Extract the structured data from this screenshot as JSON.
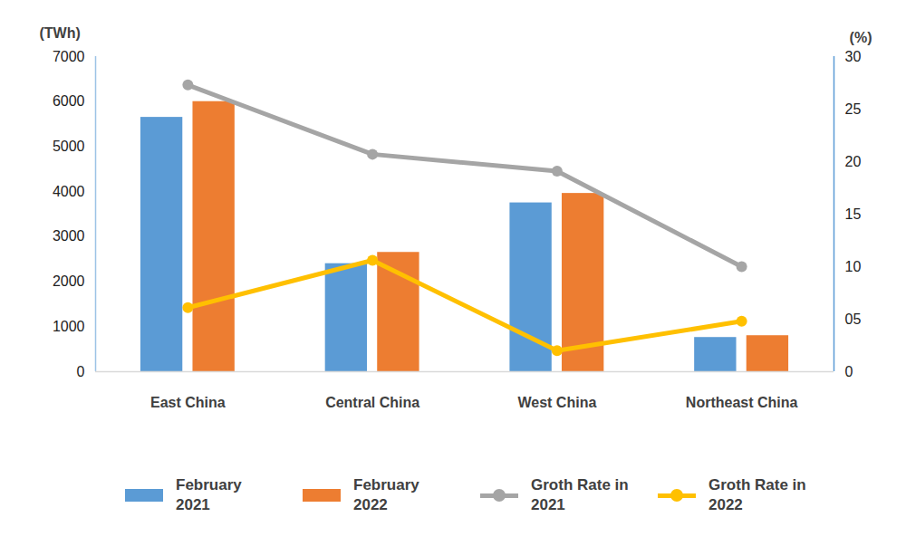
{
  "chart_data": {
    "type": "bar",
    "categories": [
      "East China",
      "Central China",
      "West China",
      "Northeast China"
    ],
    "y_label": "(TWh)",
    "y2_label": "(%)",
    "ylim": [
      0,
      7000
    ],
    "yticks": [
      0,
      1000,
      2000,
      3000,
      4000,
      5000,
      6000,
      7000
    ],
    "y2lim": [
      0,
      30
    ],
    "y2ticks": [
      0,
      {
        "value": 5,
        "label": "05"
      },
      10,
      15,
      20,
      25,
      30
    ],
    "grid": false,
    "legend": "bottom",
    "series": [
      {
        "name": "February 2021",
        "type": "bar",
        "color": "#5b9bd5",
        "values": [
          5650,
          2400,
          3750,
          760
        ]
      },
      {
        "name": "February 2022",
        "type": "bar",
        "color": "#ed7d31",
        "values": [
          6000,
          2650,
          3960,
          800
        ]
      },
      {
        "name": "Groth Rate in 2021",
        "type": "line",
        "axis": "y2",
        "marker": "circle",
        "color": "#a5a5a5",
        "values": [
          27.3,
          20.7,
          19.1,
          10.0
        ]
      },
      {
        "name": "Groth Rate in 2022",
        "type": "line",
        "axis": "y2",
        "marker": "circle",
        "color": "#ffc000",
        "values": [
          6.1,
          10.6,
          2.0,
          4.8
        ]
      }
    ]
  }
}
